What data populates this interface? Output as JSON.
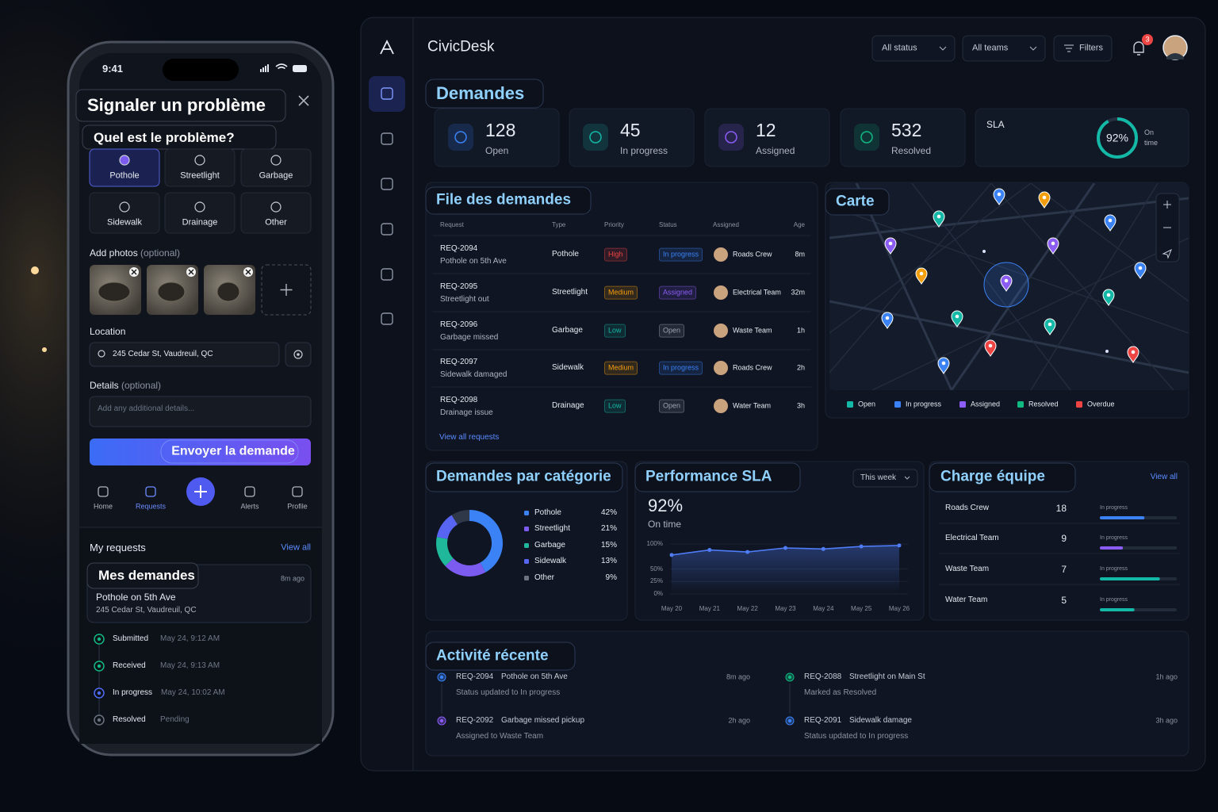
{
  "phone": {
    "time": "9:41",
    "title": "Signaler un problème",
    "question": "Quel est le problème?",
    "issue_types": [
      "Pothole",
      "Streetlight",
      "Garbage",
      "Sidewalk",
      "Drainage",
      "Other"
    ],
    "photos_label": "Add photos",
    "photos_hint": "(optional)",
    "location_label": "Location",
    "location": "245 Cedar St, Vaudreuil, QC",
    "details_label": "Details",
    "details_hint": "(optional)",
    "details_placeholder": "Add any additional details...",
    "submit": "Envoyer la demande",
    "nav": [
      "Home",
      "Requests",
      "Alerts",
      "Profile"
    ],
    "my_requests": "My requests",
    "view_all": "View all",
    "request_card": {
      "title": "Mes demandes",
      "age": "8m ago",
      "name": "Pothole on 5th Ave",
      "address": "245 Cedar St, Vaudreuil, QC"
    },
    "timeline": [
      {
        "status": "Submitted",
        "time": "May 24, 9:12 AM",
        "color": "#10b981"
      },
      {
        "status": "Received",
        "time": "May 24, 9:13 AM",
        "color": "#10b981"
      },
      {
        "status": "In progress",
        "time": "May 24, 10:02 AM",
        "color": "#4f6bf5"
      },
      {
        "status": "Resolved",
        "time": "Pending",
        "color": "#6b7280"
      }
    ]
  },
  "dashboard": {
    "brand": "CivicDesk",
    "filters": [
      "All status",
      "All teams"
    ],
    "filters_button": "Filters",
    "notifications": 3,
    "title": "Demandes",
    "stats": [
      {
        "value": 128,
        "label": "Open",
        "color": "#3b82f6"
      },
      {
        "value": 45,
        "label": "In progress",
        "color": "#14b8a6"
      },
      {
        "value": 12,
        "label": "Assigned",
        "color": "#8b5cf6"
      },
      {
        "value": 532,
        "label": "Resolved",
        "color": "#10b981"
      }
    ],
    "sla": {
      "label": "SLA",
      "value": 92,
      "value_label": "92%",
      "caption": "On time",
      "color": "#14b8a6"
    },
    "queue": {
      "title": "File des demandes",
      "columns": [
        "Request",
        "Type",
        "Priority",
        "Status",
        "Assigned",
        "Age"
      ],
      "rows": [
        {
          "id": "REQ-2094",
          "summary": "Pothole on 5th Ave",
          "type": "Pothole",
          "priority": "High",
          "priority_color": "#ef4444",
          "status": "In progress",
          "status_color": "#3b82f6",
          "assigned": "Roads Crew",
          "age": "8m"
        },
        {
          "id": "REQ-2095",
          "summary": "Streetlight out",
          "type": "Streetlight",
          "priority": "Medium",
          "priority_color": "#f59e0b",
          "status": "Assigned",
          "status_color": "#8b5cf6",
          "assigned": "Electrical Team",
          "age": "32m"
        },
        {
          "id": "REQ-2096",
          "summary": "Garbage missed",
          "type": "Garbage",
          "priority": "Low",
          "priority_color": "#14b8a6",
          "status": "Open",
          "status_color": "#9ca3af",
          "assigned": "Waste Team",
          "age": "1h"
        },
        {
          "id": "REQ-2097",
          "summary": "Sidewalk damaged",
          "type": "Sidewalk",
          "priority": "Medium",
          "priority_color": "#f59e0b",
          "status": "In progress",
          "status_color": "#3b82f6",
          "assigned": "Roads Crew",
          "age": "2h"
        },
        {
          "id": "REQ-2098",
          "summary": "Drainage issue",
          "type": "Drainage",
          "priority": "Low",
          "priority_color": "#14b8a6",
          "status": "Open",
          "status_color": "#9ca3af",
          "assigned": "Water Team",
          "age": "3h"
        }
      ],
      "view_all": "View all requests"
    },
    "map": {
      "title": "Carte",
      "legend": [
        {
          "name": "Open",
          "color": "#14b8a6"
        },
        {
          "name": "In progress",
          "color": "#3b82f6"
        },
        {
          "name": "Assigned",
          "color": "#8b5cf6"
        },
        {
          "name": "Resolved",
          "color": "#10b981"
        },
        {
          "name": "Overdue",
          "color": "#ef4444"
        }
      ]
    },
    "categories_chart": {
      "type": "donut",
      "title": "Demandes par catégorie",
      "categories": [
        "Pothole",
        "Streetlight",
        "Garbage",
        "Sidewalk",
        "Other"
      ],
      "values": [
        42,
        21,
        15,
        13,
        9
      ],
      "value_labels": [
        "42%",
        "21%",
        "15%",
        "13%",
        "9%"
      ],
      "colors": [
        "#3b82f6",
        "#7c5cf0",
        "#1fb89a",
        "#5865f2",
        "#2f3848"
      ]
    },
    "sla_performance": {
      "type": "line",
      "title": "Performance SLA",
      "period": "This week",
      "value_label": "92%",
      "caption": "On time",
      "x": [
        "May 20",
        "May 21",
        "May 22",
        "May 23",
        "May 24",
        "May 25",
        "May 26"
      ],
      "values": [
        78,
        88,
        84,
        92,
        90,
        95,
        97
      ],
      "ylim": [
        0,
        100
      ],
      "yticks": [
        {
          "value": 0,
          "label": "0%"
        },
        {
          "value": 25,
          "label": "25%"
        },
        {
          "value": 50,
          "label": "50%"
        },
        {
          "value": 100,
          "label": "100%"
        }
      ],
      "color": "#4f7cf7"
    },
    "team_load": {
      "title": "Charge équipe",
      "view_all": "View all",
      "rows": [
        {
          "team": "Roads Crew",
          "count": 18,
          "status": "In progress",
          "load": 58,
          "color": "#3b82f6"
        },
        {
          "team": "Electrical Team",
          "count": 9,
          "status": "In progress",
          "load": 30,
          "color": "#8b5cf6"
        },
        {
          "team": "Waste Team",
          "count": 7,
          "status": "In progress",
          "load": 78,
          "color": "#14b8a6"
        },
        {
          "team": "Water Team",
          "count": 5,
          "status": "In progress",
          "load": 45,
          "color": "#14b8a6"
        }
      ]
    },
    "activity": {
      "title": "Activité récente",
      "items": [
        {
          "id": "REQ-2094",
          "title": "Pothole on 5th Ave",
          "age": "8m ago",
          "detail": "Status updated to In progress",
          "color": "#3b82f6"
        },
        {
          "id": "REQ-2092",
          "title": "Garbage missed pickup",
          "age": "2h ago",
          "detail": "Assigned to Waste Team",
          "color": "#8b5cf6"
        },
        {
          "id": "REQ-2088",
          "title": "Streetlight on Main St",
          "age": "1h ago",
          "detail": "Marked as Resolved",
          "color": "#10b981"
        },
        {
          "id": "REQ-2091",
          "title": "Sidewalk damage",
          "age": "3h ago",
          "detail": "Status updated to In progress",
          "color": "#3b82f6"
        }
      ]
    }
  }
}
